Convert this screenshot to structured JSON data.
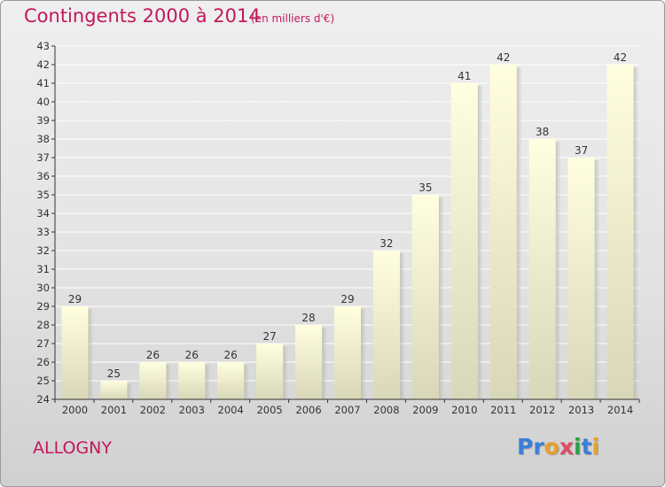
{
  "title": "Contingents 2000 à 2014",
  "subtitle": "(en milliers d'€)",
  "place": "ALLOGNY",
  "logo": {
    "text": "Proxiti",
    "letters": [
      {
        "ch": "P",
        "color": "#3a7fd8"
      },
      {
        "ch": "r",
        "color": "#3a7fd8"
      },
      {
        "ch": "o",
        "color": "#e8a02a"
      },
      {
        "ch": "x",
        "color": "#e04b6a"
      },
      {
        "ch": "i",
        "color": "#2aa04a"
      },
      {
        "ch": "t",
        "color": "#3a7fd8"
      },
      {
        "ch": "i",
        "color": "#e8a02a"
      }
    ]
  },
  "colors": {
    "title": "#c2185b",
    "bar_top": "#ffffe0",
    "bar_bottom": "#d8d8b8",
    "axis": "#333333",
    "grid": "#ffffff"
  },
  "chart_data": {
    "type": "bar",
    "title": "Contingents 2000 à 2014",
    "subtitle": "(en milliers d'€)",
    "categories": [
      "2000",
      "2001",
      "2002",
      "2003",
      "2004",
      "2005",
      "2006",
      "2007",
      "2008",
      "2009",
      "2010",
      "2011",
      "2012",
      "2013",
      "2014"
    ],
    "values": [
      29,
      25,
      26,
      26,
      26,
      27,
      28,
      29,
      32,
      35,
      41,
      42,
      38,
      37,
      42
    ],
    "ylim": [
      24,
      43
    ],
    "yticks": [
      24,
      25,
      26,
      27,
      28,
      29,
      30,
      31,
      32,
      33,
      34,
      35,
      36,
      37,
      38,
      39,
      40,
      41,
      42,
      43
    ],
    "grid": true,
    "data_labels": true
  }
}
